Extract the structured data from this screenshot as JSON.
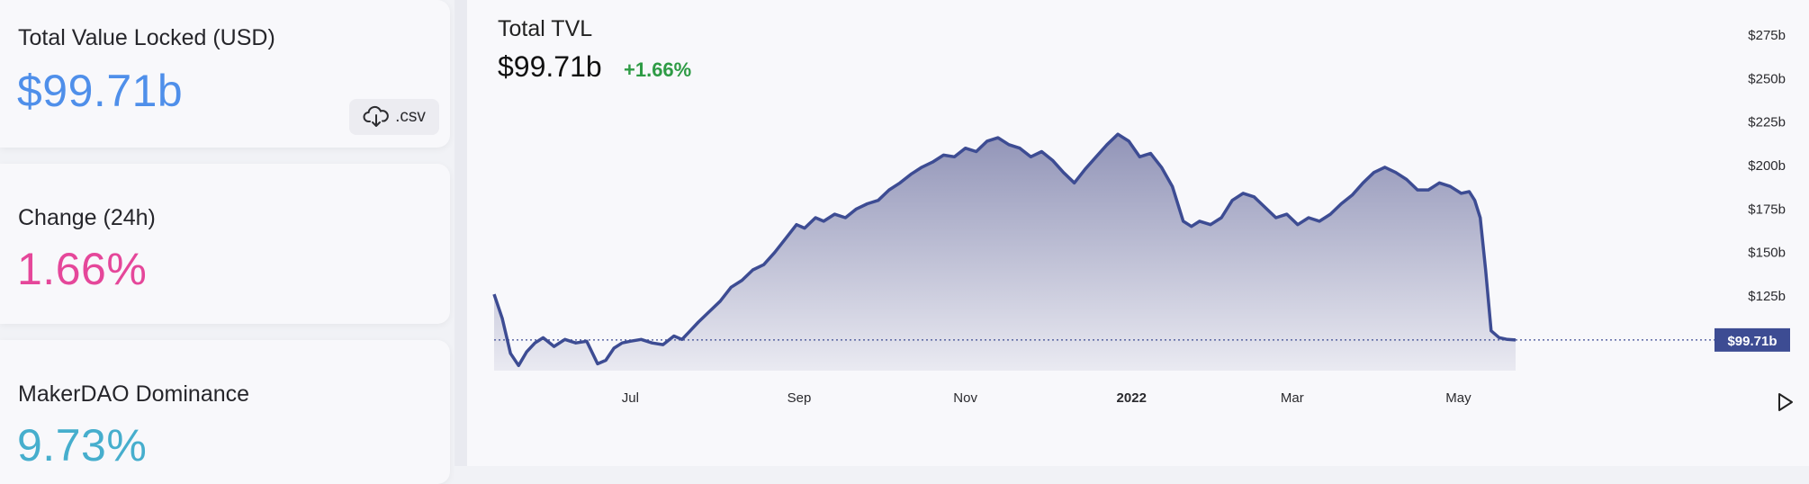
{
  "summary": {
    "tvl_label": "Total Value Locked (USD)",
    "tvl_value": "$99.71b",
    "csv_label": ".csv",
    "change_label": "Change (24h)",
    "change_value": "1.66%",
    "dominance_label": "MakerDAO Dominance",
    "dominance_value": "9.73%"
  },
  "colors": {
    "tvl": "#4f8fea",
    "change": "#e5479a",
    "dominance": "#46aecd",
    "line": "#3d4c93",
    "positive": "#2e9b45"
  },
  "header": {
    "title": "Total TVL",
    "value": "$99.71b",
    "change": "+1.66%"
  },
  "chart_data": {
    "type": "area",
    "title": "Total TVL",
    "ylim": [
      75,
      280
    ],
    "y_ticks": [
      "$275b",
      "$250b",
      "$225b",
      "$200b",
      "$175b",
      "$150b",
      "$125b"
    ],
    "y_tick_values": [
      275,
      250,
      225,
      200,
      175,
      150,
      125
    ],
    "x_ticks": [
      "Jul",
      "Sep",
      "Nov",
      "2022",
      "Mar",
      "May"
    ],
    "x_tick_dates": [
      "2021-07-01",
      "2021-09-01",
      "2021-11-01",
      "2022-01-01",
      "2022-03-01",
      "2022-05-01"
    ],
    "current_value": 99.71,
    "current_label": "$99.71b",
    "series": [
      {
        "x": [
          "2021-05-12",
          "2021-05-15",
          "2021-05-18",
          "2021-05-21",
          "2021-05-24",
          "2021-05-27",
          "2021-05-30",
          "2021-06-03",
          "2021-06-07",
          "2021-06-11",
          "2021-06-15",
          "2021-06-19",
          "2021-06-22",
          "2021-06-25",
          "2021-06-28",
          "2021-07-01",
          "2021-07-05",
          "2021-07-09",
          "2021-07-13",
          "2021-07-17",
          "2021-07-20",
          "2021-07-23",
          "2021-07-26",
          "2021-07-30",
          "2021-08-03",
          "2021-08-07",
          "2021-08-11",
          "2021-08-15",
          "2021-08-19",
          "2021-08-23",
          "2021-08-27",
          "2021-08-31",
          "2021-09-03",
          "2021-09-07",
          "2021-09-10",
          "2021-09-14",
          "2021-09-18",
          "2021-09-22",
          "2021-09-26",
          "2021-09-30",
          "2021-10-04",
          "2021-10-08",
          "2021-10-12",
          "2021-10-16",
          "2021-10-20",
          "2021-10-24",
          "2021-10-28",
          "2021-11-01",
          "2021-11-05",
          "2021-11-09",
          "2021-11-13",
          "2021-11-17",
          "2021-11-21",
          "2021-11-25",
          "2021-11-29",
          "2021-12-03",
          "2021-12-07",
          "2021-12-11",
          "2021-12-15",
          "2021-12-19",
          "2021-12-23",
          "2021-12-27",
          "2021-12-31",
          "2022-01-04",
          "2022-01-08",
          "2022-01-12",
          "2022-01-16",
          "2022-01-20",
          "2022-01-23",
          "2022-01-26",
          "2022-01-30",
          "2022-02-03",
          "2022-02-07",
          "2022-02-11",
          "2022-02-15",
          "2022-02-19",
          "2022-02-23",
          "2022-02-27",
          "2022-03-03",
          "2022-03-07",
          "2022-03-11",
          "2022-03-15",
          "2022-03-19",
          "2022-03-23",
          "2022-03-27",
          "2022-03-31",
          "2022-04-04",
          "2022-04-08",
          "2022-04-12",
          "2022-04-16",
          "2022-04-20",
          "2022-04-24",
          "2022-04-28",
          "2022-05-02",
          "2022-05-05",
          "2022-05-07",
          "2022-05-09",
          "2022-05-11",
          "2022-05-13",
          "2022-05-16",
          "2022-05-19",
          "2022-05-22"
        ],
        "values": [
          126,
          112,
          92,
          85,
          93,
          98,
          101,
          96,
          100,
          98,
          99,
          86,
          88,
          95,
          98,
          99,
          100,
          98,
          97,
          102,
          100,
          105,
          110,
          116,
          122,
          130,
          134,
          140,
          143,
          150,
          158,
          166,
          164,
          170,
          168,
          172,
          170,
          175,
          178,
          180,
          186,
          190,
          195,
          199,
          202,
          206,
          205,
          210,
          208,
          214,
          216,
          212,
          210,
          205,
          208,
          203,
          196,
          190,
          198,
          205,
          212,
          218,
          214,
          205,
          207,
          199,
          188,
          168,
          165,
          168,
          166,
          170,
          180,
          184,
          182,
          176,
          170,
          172,
          166,
          170,
          168,
          172,
          178,
          183,
          190,
          196,
          199,
          196,
          192,
          186,
          186,
          190,
          188,
          184,
          185,
          180,
          170,
          140,
          105,
          101,
          100,
          99.71
        ]
      }
    ]
  }
}
